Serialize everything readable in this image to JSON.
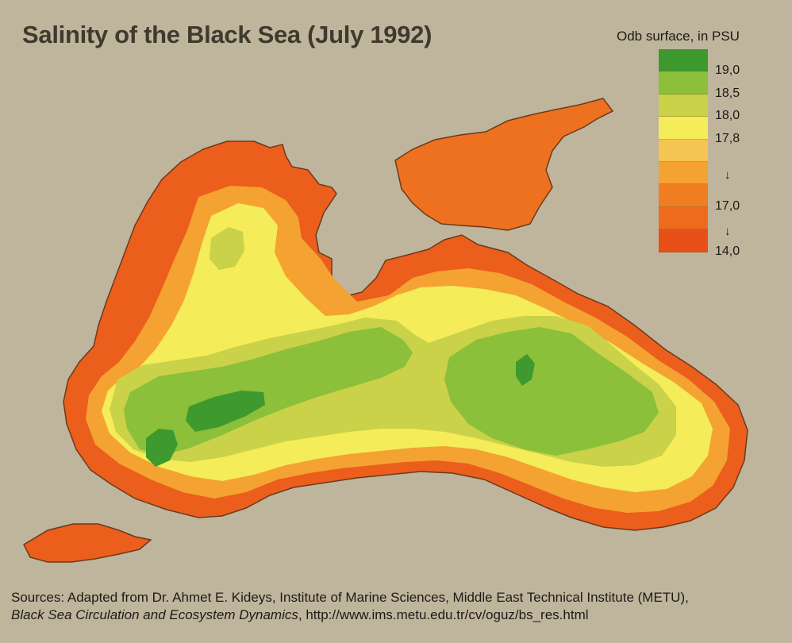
{
  "title": "Salinity of the Black Sea (July 1992)",
  "legend": {
    "title": "Odb surface, in PSU",
    "colors": [
      "#3e9a2e",
      "#8cbf3a",
      "#c9d248",
      "#f4ec58",
      "#f6c453",
      "#f4a232",
      "#f07d21",
      "#ee6a1c",
      "#e8501a"
    ],
    "labels": [
      {
        "text": "19,0",
        "row": 1
      },
      {
        "text": "18,5",
        "row": 2
      },
      {
        "text": "18,0",
        "row": 3
      },
      {
        "text": "17,8",
        "row": 4
      },
      {
        "text": "17,0",
        "row": 7
      },
      {
        "text": "14,0",
        "row": 9
      }
    ],
    "arrows": [
      "↓",
      "↓"
    ]
  },
  "source": {
    "line1": "Sources: Adapted from Dr. Ahmet E. Kideys, Institute of Marine Sciences, Middle East Technical Institute (METU),",
    "line2_italic": "Black Sea Circulation and Ecosystem Dynamics",
    "line2_rest": ", http://www.ims.metu.edu.tr/cv/oguz/bs_res.html"
  }
}
